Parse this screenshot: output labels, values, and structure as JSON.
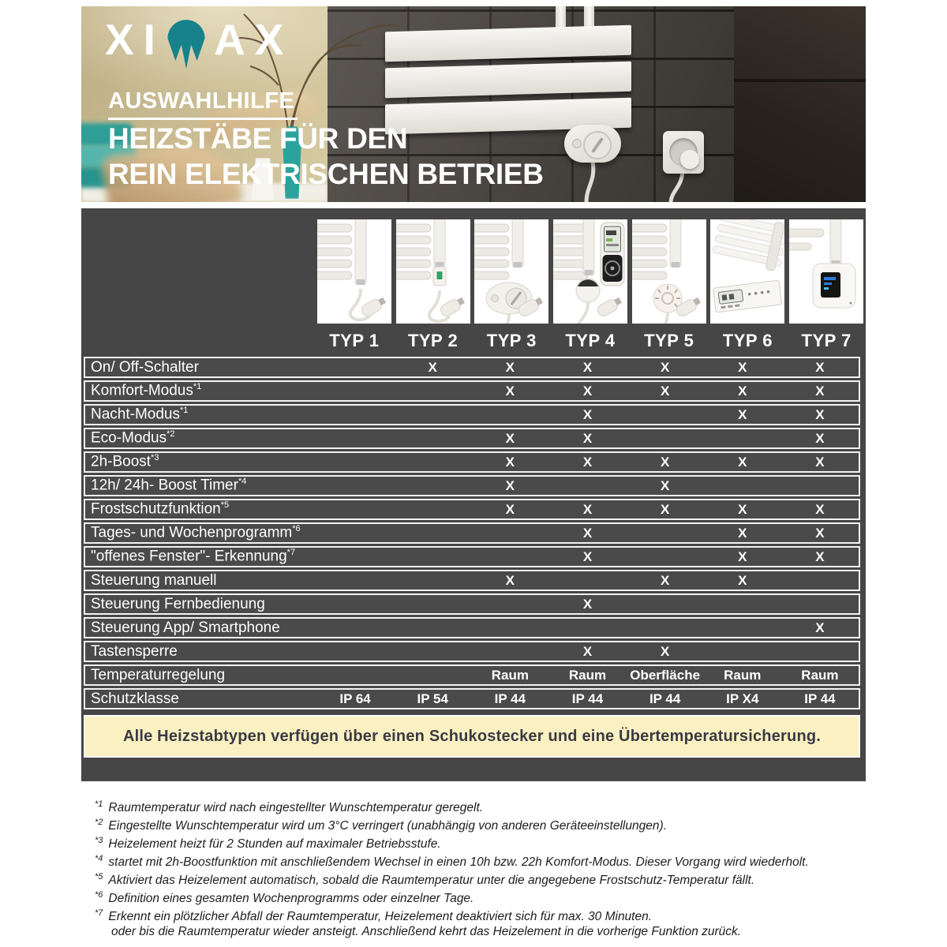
{
  "colors": {
    "accent_teal": "#17828c",
    "dark_panel": "#464646",
    "banner_bg": "#fbf0c1",
    "banner_text": "#3a3a44"
  },
  "header": {
    "brand_left": "XI",
    "brand_mark": "ximax-m-drop",
    "brand_right": "AX",
    "subtitle": "AUSWAHLHILFE",
    "title_line1": "HEIZSTÄBE FÜR DEN",
    "title_line2": "REIN ELEKTRISCHEN BETRIEB"
  },
  "table": {
    "types": [
      {
        "label": "TYP 1",
        "icon": "rod-basic"
      },
      {
        "label": "TYP 2",
        "icon": "rod-switch"
      },
      {
        "label": "TYP 3",
        "icon": "rod-dial-control"
      },
      {
        "label": "TYP 4",
        "icon": "rod-remote-control"
      },
      {
        "label": "TYP 5",
        "icon": "rod-thermostat-dial"
      },
      {
        "label": "TYP 6",
        "icon": "panel-control"
      },
      {
        "label": "TYP 7",
        "icon": "rod-box-display"
      }
    ],
    "rows": [
      {
        "label": "On/ Off-Schalter",
        "sup": "",
        "cells": [
          "",
          "X",
          "X",
          "X",
          "X",
          "X",
          "X"
        ]
      },
      {
        "label": "Komfort-Modus",
        "sup": "*1",
        "cells": [
          "",
          "",
          "X",
          "X",
          "X",
          "X",
          "X"
        ]
      },
      {
        "label": "Nacht-Modus",
        "sup": "*1",
        "cells": [
          "",
          "",
          "",
          "X",
          "",
          "X",
          "X"
        ]
      },
      {
        "label": "Eco-Modus",
        "sup": "*2",
        "cells": [
          "",
          "",
          "X",
          "X",
          "",
          "",
          "X"
        ]
      },
      {
        "label": "2h-Boost",
        "sup": "*3",
        "cells": [
          "",
          "",
          "X",
          "X",
          "X",
          "X",
          "X"
        ]
      },
      {
        "label": "12h/ 24h- Boost Timer",
        "sup": "*4",
        "cells": [
          "",
          "",
          "X",
          "",
          "X",
          "",
          ""
        ]
      },
      {
        "label": "Frostschutzfunktion",
        "sup": "*5",
        "cells": [
          "",
          "",
          "X",
          "X",
          "X",
          "X",
          "X"
        ]
      },
      {
        "label": "Tages- und Wochenprogramm",
        "sup": "*6",
        "cells": [
          "",
          "",
          "",
          "X",
          "",
          "X",
          "X"
        ]
      },
      {
        "label": "\"offenes Fenster\"- Erkennung",
        "sup": "*7",
        "cells": [
          "",
          "",
          "",
          "X",
          "",
          "X",
          "X"
        ]
      },
      {
        "label": "Steuerung manuell",
        "sup": "",
        "cells": [
          "",
          "",
          "X",
          "",
          "X",
          "X",
          ""
        ]
      },
      {
        "label": "Steuerung Fernbedienung",
        "sup": "",
        "cells": [
          "",
          "",
          "",
          "X",
          "",
          "",
          ""
        ]
      },
      {
        "label": "Steuerung App/ Smartphone",
        "sup": "",
        "cells": [
          "",
          "",
          "",
          "",
          "",
          "",
          "X"
        ]
      },
      {
        "label": "Tastensperre",
        "sup": "",
        "cells": [
          "",
          "",
          "",
          "X",
          "X",
          "",
          ""
        ]
      },
      {
        "label": "Temperaturregelung",
        "sup": "",
        "cells": [
          "",
          "",
          "Raum",
          "Raum",
          "Oberfläche",
          "Raum",
          "Raum"
        ]
      },
      {
        "label": "Schutzklasse",
        "sup": "",
        "cells": [
          "IP 64",
          "IP 54",
          "IP 44",
          "IP 44",
          "IP 44",
          "IP X4",
          "IP 44"
        ]
      }
    ],
    "banner_text": "Alle Heizstabtypen verfügen über einen Schukostecker und eine Übertemperatursicherung."
  },
  "footnotes": [
    {
      "mark": "*1",
      "text": "Raumtemperatur wird nach eingestellter Wunschtemperatur geregelt."
    },
    {
      "mark": "*2",
      "text": "Eingestellte Wunschtemperatur wird um 3°C verringert (unabhängig von anderen Geräteeinstellungen)."
    },
    {
      "mark": "*3",
      "text": "Heizelement heizt für 2 Stunden auf maximaler Betriebsstufe."
    },
    {
      "mark": "*4",
      "text": "startet mit 2h-Boostfunktion mit anschließendem Wechsel in einen 10h bzw. 22h Komfort-Modus. Dieser Vorgang wird wiederholt."
    },
    {
      "mark": "*5",
      "text": "Aktiviert das Heizelement automatisch, sobald die Raumtemperatur unter die angegebene Frostschutz-Temperatur fällt."
    },
    {
      "mark": "*6",
      "text": "Definition eines gesamten Wochenprogramms oder einzelner Tage."
    },
    {
      "mark": "*7",
      "text": "Erkennt ein plötzlicher Abfall der Raumtemperatur, Heizelement deaktiviert sich für max. 30 Minuten."
    },
    {
      "mark": "",
      "text": "oder bis die Raumtemperatur wieder ansteigt. Anschließend kehrt das Heizelement in die vorherige Funktion zurück."
    }
  ]
}
